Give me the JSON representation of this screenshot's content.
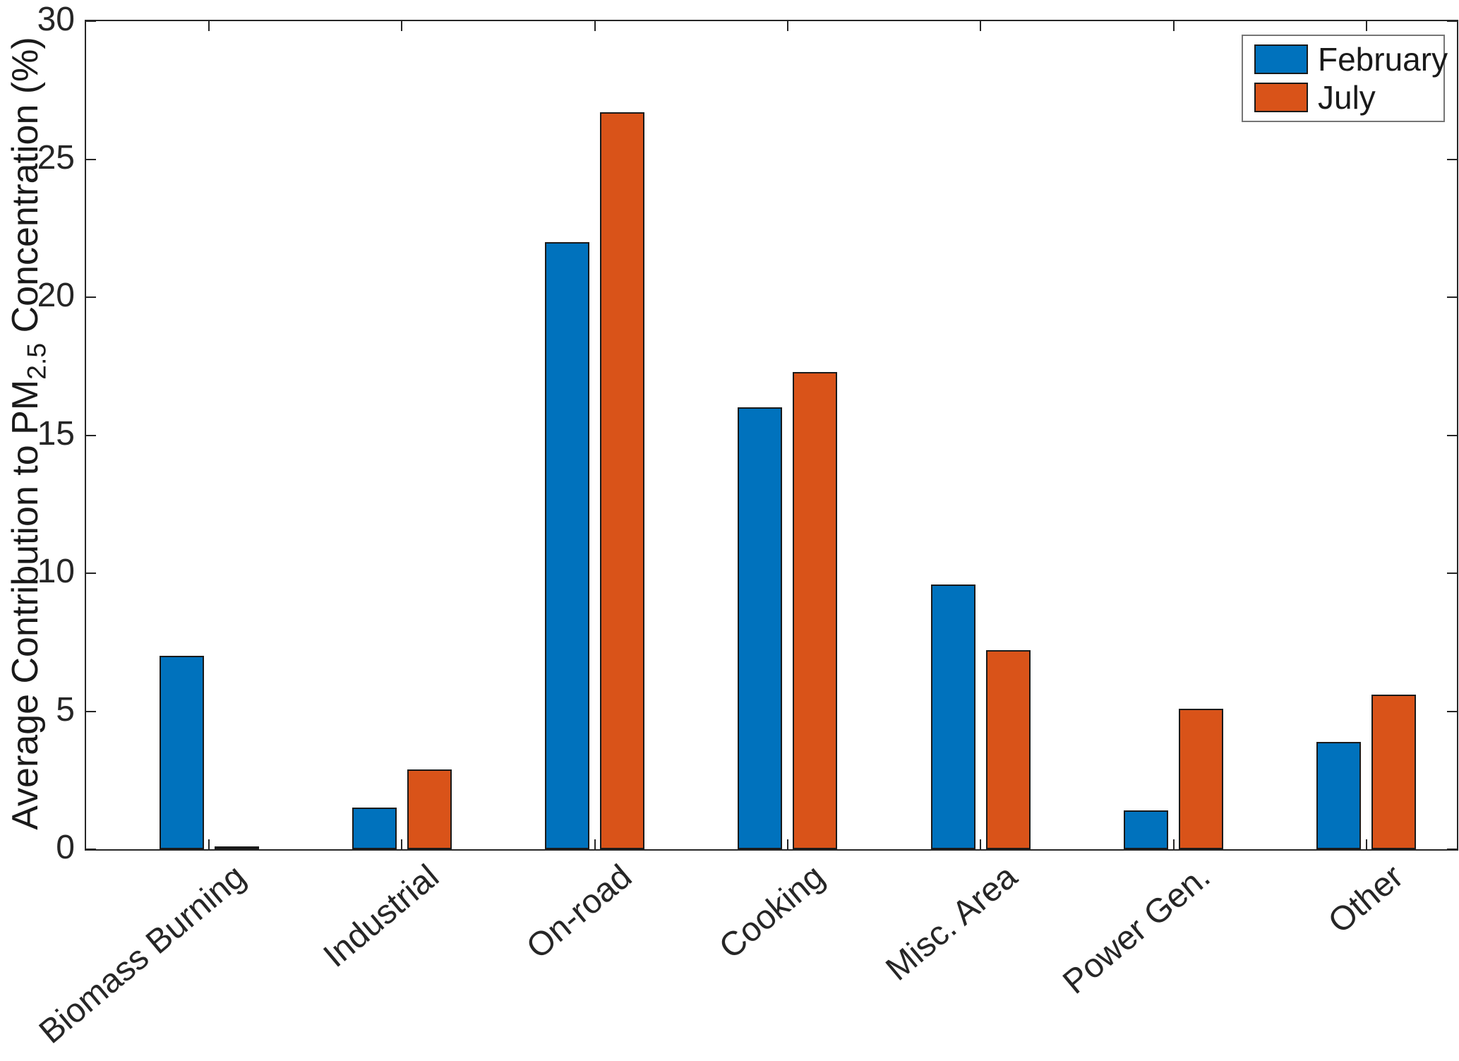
{
  "figure": {
    "background": "#ffffff",
    "axis_color": "#262626",
    "bar_edge_color": "#1a1a1a"
  },
  "chart_data": {
    "type": "bar",
    "title": "",
    "categories": [
      "Biomass Burning",
      "Industrial",
      "On-road",
      "Cooking",
      "Misc. Area",
      "Power Gen.",
      "Other"
    ],
    "series": [
      {
        "name": "February",
        "color": "#0072BD",
        "values": [
          7.0,
          1.5,
          22.0,
          16.0,
          9.6,
          1.4,
          3.9
        ]
      },
      {
        "name": "July",
        "color": "#D95319",
        "values": [
          0.1,
          2.9,
          26.7,
          17.3,
          7.2,
          5.1,
          5.6
        ]
      }
    ],
    "xlabel": "",
    "ylabel_parts": {
      "pre": "Average Contribution to PM",
      "sub": "2.5",
      "post": " Concentration (%)"
    },
    "ylim": [
      0,
      30
    ],
    "yticks": [
      0,
      5,
      10,
      15,
      20,
      25,
      30
    ],
    "xtick_angle_deg": 40,
    "grid": false,
    "legend_position": "top-right"
  }
}
